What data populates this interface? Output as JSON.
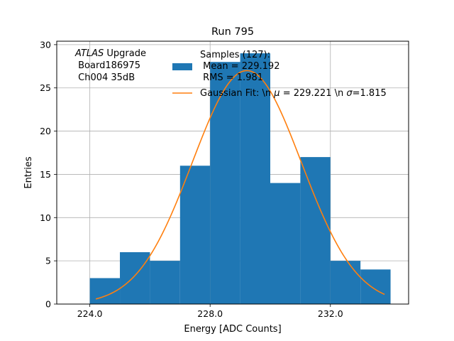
{
  "chart_data": {
    "type": "bar",
    "title": "Run 795",
    "xlabel": "Energy [ADC Counts]",
    "ylabel": "Entries",
    "xlim": [
      222.9,
      234.6
    ],
    "ylim": [
      0,
      30.4
    ],
    "xticks": [
      224.0,
      228.0,
      232.0
    ],
    "xtick_labels": [
      "224.0",
      "228.0",
      "232.0"
    ],
    "yticks": [
      0,
      5,
      10,
      15,
      20,
      25,
      30
    ],
    "ytick_labels": [
      "0",
      "5",
      "10",
      "15",
      "20",
      "25",
      "30"
    ],
    "grid": true,
    "bin_edges": [
      224,
      225,
      226,
      227,
      228,
      229,
      230,
      231,
      232,
      233,
      234
    ],
    "counts": [
      3,
      6,
      5,
      16,
      28,
      29,
      14,
      17,
      5,
      4
    ],
    "histogram_color": "#1f77b4",
    "fit_color": "#ff7f0e",
    "fit": {
      "mu": 229.221,
      "sigma": 1.815,
      "amplitude": 27,
      "x_range": [
        224.2,
        233.8
      ]
    },
    "annotation": {
      "atlas_label": "ATLAS",
      "atlas_suffix": " Upgrade",
      "board": " Board186975",
      "channel": " Ch004 35dB"
    },
    "legend": {
      "placement": "top-right",
      "samples_line1": "Samples (127):",
      "samples_line2": " Mean = 229.192",
      "samples_line3": " RMS = 1.981",
      "fit_label_prefix": "Gaussian Fit: \\n ",
      "fit_label_mu_symbol": "μ",
      "fit_label_mu_value": " = 229.221 \\n ",
      "fit_label_sigma_symbol": "σ",
      "fit_label_sigma_value": "=1.815"
    }
  }
}
